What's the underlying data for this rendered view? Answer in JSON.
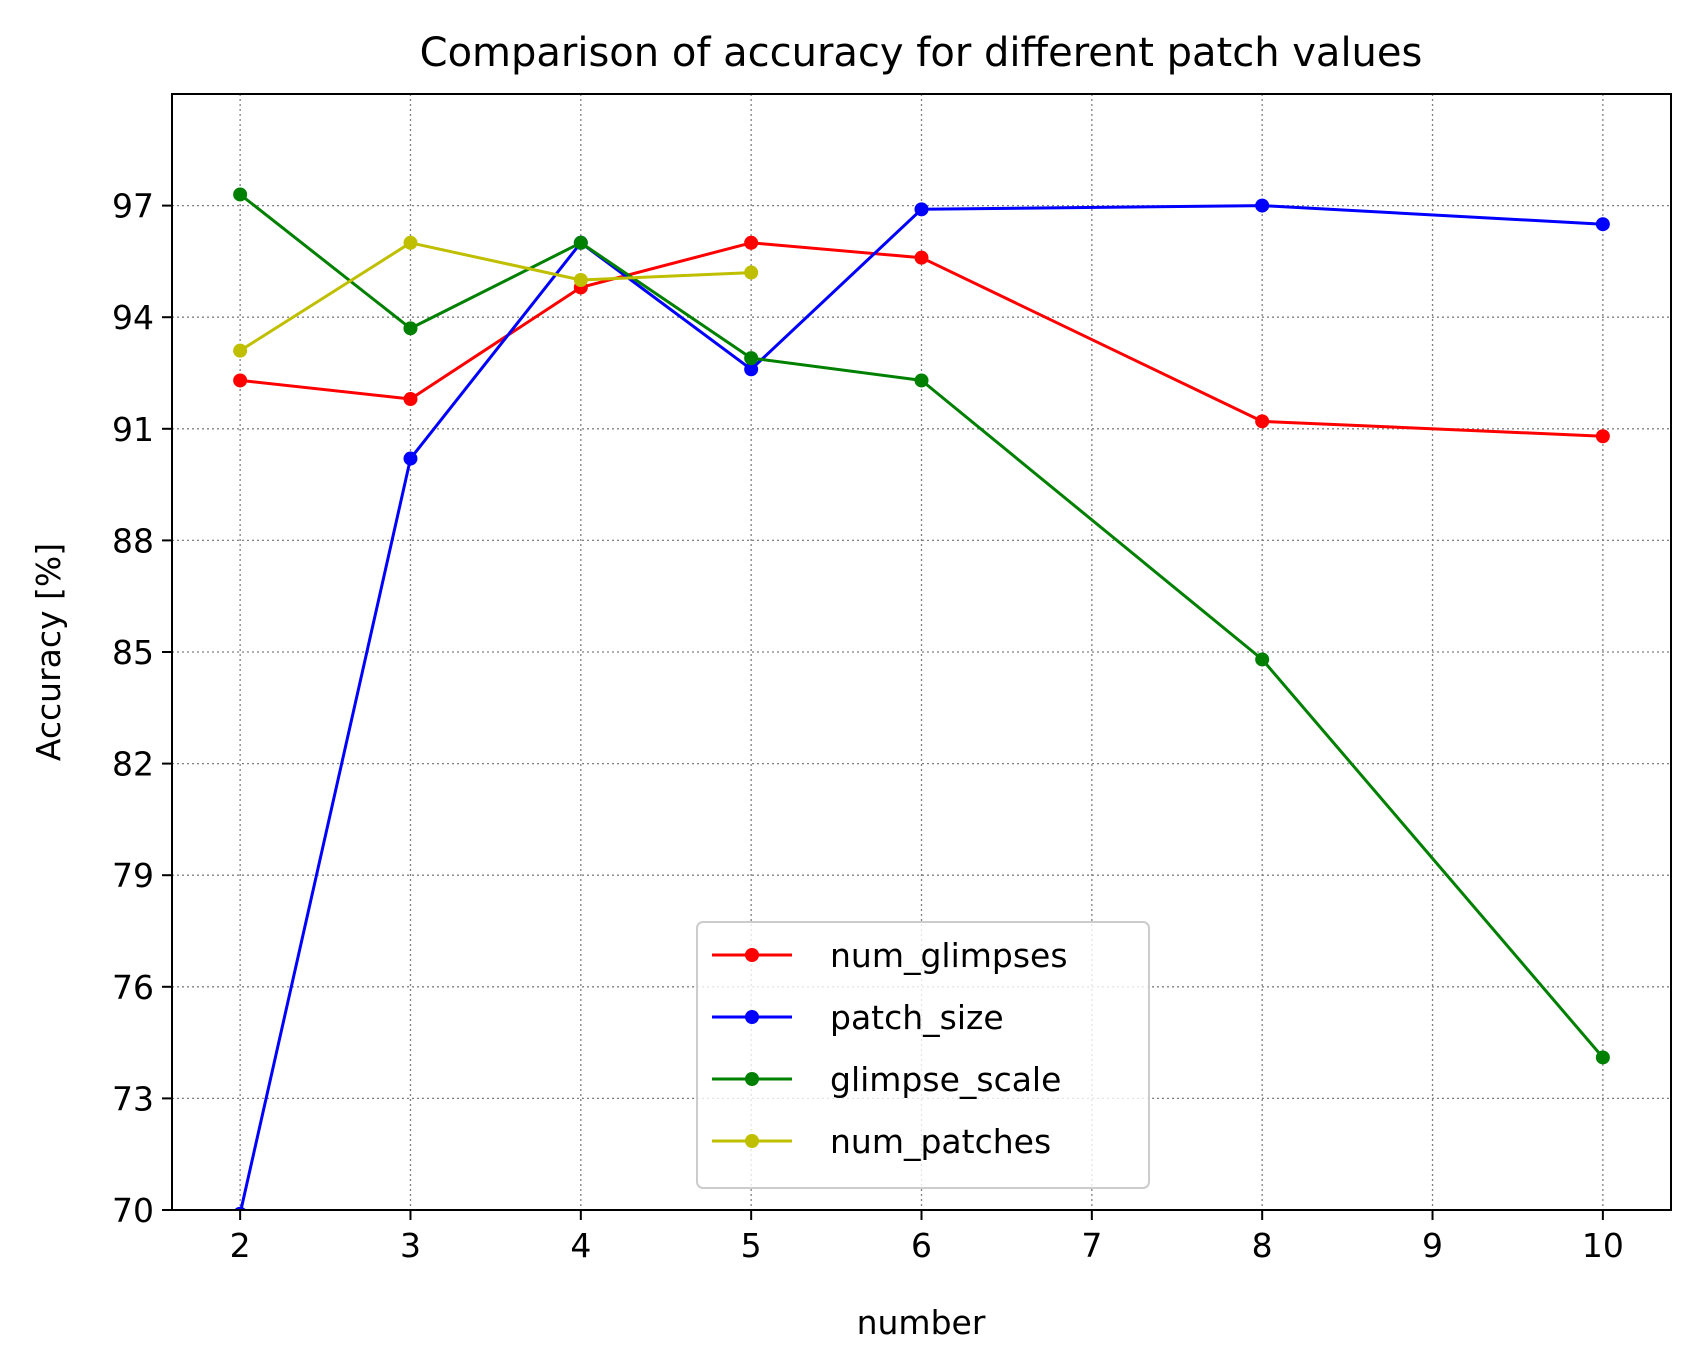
{
  "chart_data": {
    "type": "line",
    "title": "Comparison of accuracy for different patch values",
    "xlabel": "number",
    "ylabel": "Accuracy [%]",
    "xlim": [
      1.6,
      10.4
    ],
    "ylim": [
      70,
      100
    ],
    "xticks": [
      2,
      3,
      4,
      5,
      6,
      7,
      8,
      9,
      10
    ],
    "yticks": [
      70,
      73,
      76,
      79,
      82,
      85,
      88,
      91,
      94,
      97
    ],
    "xtick_labels": [
      "2",
      "3",
      "4",
      "5",
      "6",
      "7",
      "8",
      "9",
      "10"
    ],
    "ytick_labels": [
      "70",
      "73",
      "76",
      "79",
      "82",
      "85",
      "88",
      "91",
      "94",
      "97"
    ],
    "grid": true,
    "legend_position": "lower-center",
    "series": [
      {
        "name": "num_glimpses",
        "color": "#ff0000",
        "x": [
          2,
          3,
          4,
          5,
          6,
          8,
          10
        ],
        "y": [
          92.3,
          91.8,
          94.8,
          96.0,
          95.6,
          91.2,
          90.8
        ]
      },
      {
        "name": "patch_size",
        "color": "#0000ff",
        "x": [
          2,
          3,
          4,
          5,
          6,
          8,
          10
        ],
        "y": [
          69.9,
          90.2,
          96.0,
          92.6,
          96.9,
          97.0,
          96.5
        ]
      },
      {
        "name": "glimpse_scale",
        "color": "#008000",
        "x": [
          2,
          3,
          4,
          5,
          6,
          8,
          10
        ],
        "y": [
          97.3,
          93.7,
          96.0,
          92.9,
          92.3,
          84.8,
          74.1
        ]
      },
      {
        "name": "num_patches",
        "color": "#bfbf00",
        "x": [
          2,
          3,
          4,
          5
        ],
        "y": [
          93.1,
          96.0,
          95.0,
          95.2
        ]
      }
    ]
  }
}
